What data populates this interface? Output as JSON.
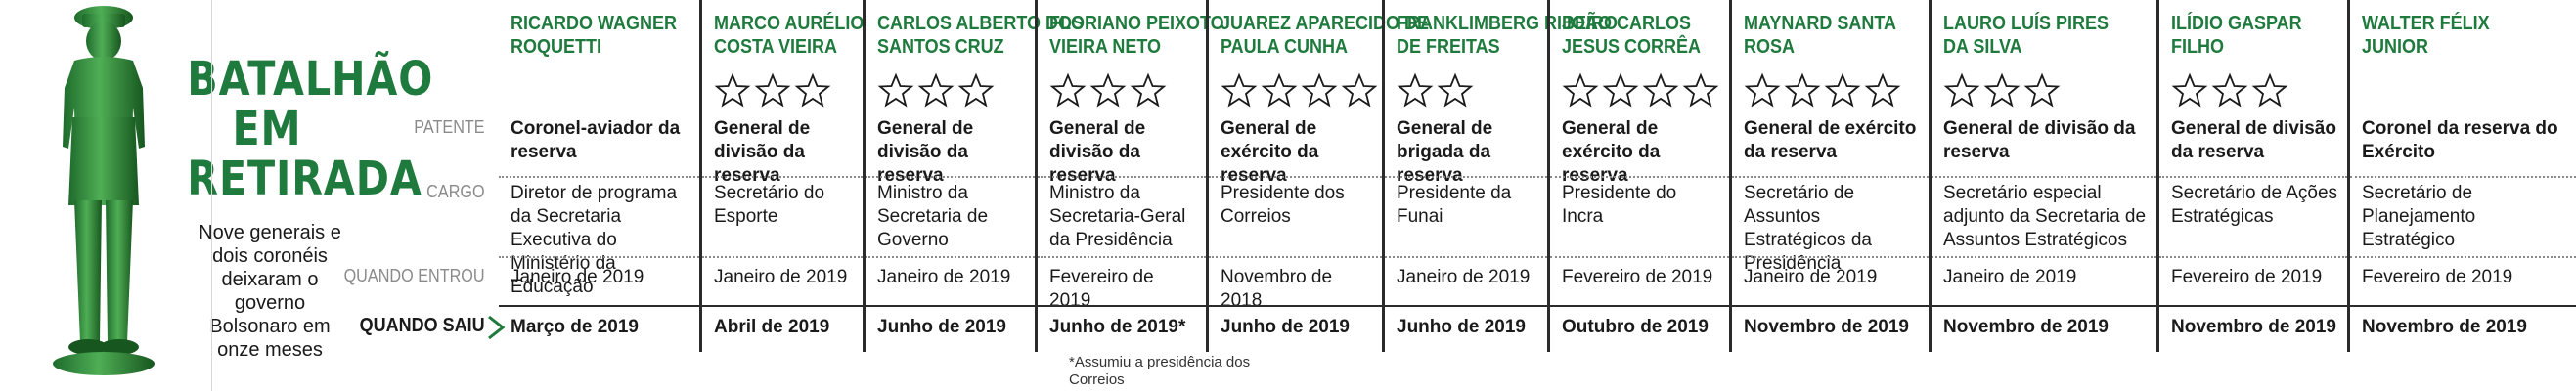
{
  "title": "BATALHÃO EM RETIRADA",
  "subtitle": "Nove generais e dois coronéis deixaram o governo Bolsonaro em onze meses",
  "row_labels": {
    "patente": "PATENTE",
    "cargo": "CARGO",
    "quando_entrou": "QUANDO ENTROU",
    "quando_saiu": "QUANDO SAIU"
  },
  "footnote": "*Assumiu a presidência dos Correios",
  "accent_color": "#1f7a3d",
  "people": [
    {
      "name": "RICARDO WAGNER ROQUETTI",
      "stars": 0,
      "patente": "Coronel-aviador da reserva",
      "cargo": "Diretor de programa da Secretaria Executiva do Ministério da Educação",
      "entrou": "Janeiro de 2019",
      "saiu": "Março de 2019"
    },
    {
      "name": "MARCO AURÉLIO COSTA VIEIRA",
      "stars": 3,
      "patente": "General de divisão da reserva",
      "cargo": "Secretário do Esporte",
      "entrou": "Janeiro de 2019",
      "saiu": "Abril de 2019"
    },
    {
      "name": "CARLOS ALBERTO DOS SANTOS CRUZ",
      "stars": 3,
      "patente": "General de divisão da reserva",
      "cargo": "Ministro da Secretaria de Governo",
      "entrou": "Janeiro de 2019",
      "saiu": "Junho de 2019"
    },
    {
      "name": "FLORIANO PEIXOTO VIEIRA NETO",
      "stars": 3,
      "patente": "General de divisão da reserva",
      "cargo": "Ministro da Secretaria-Geral da Presidência",
      "entrou": "Fevereiro de 2019",
      "saiu": "Junho de 2019*"
    },
    {
      "name": "JUAREZ APARECIDO DE PAULA CUNHA",
      "stars": 4,
      "patente": "General de exército da reserva",
      "cargo": "Presidente dos Correios",
      "entrou": "Novembro de 2018",
      "saiu": "Junho de 2019"
    },
    {
      "name": "FRANKLIMBERG RIBEIRO DE FREITAS",
      "stars": 2,
      "patente": "General de brigada da reserva",
      "cargo": "Presidente da Funai",
      "entrou": "Janeiro de 2019",
      "saiu": "Junho de 2019"
    },
    {
      "name": "JOÃO CARLOS JESUS CORRÊA",
      "stars": 4,
      "patente": "General de exército da reserva",
      "cargo": "Presidente do Incra",
      "entrou": "Fevereiro de 2019",
      "saiu": "Outubro de 2019"
    },
    {
      "name": "MAYNARD SANTA ROSA",
      "stars": 4,
      "patente": "General de exército da reserva",
      "cargo": "Secretário de Assuntos Estratégicos da Presidência",
      "entrou": "Janeiro de 2019",
      "saiu": "Novembro de 2019"
    },
    {
      "name": "LAURO LUÍS PIRES DA SILVA",
      "stars": 3,
      "patente": "General de divisão da reserva",
      "cargo": "Secretário especial adjunto da Secretaria de Assuntos Estratégicos",
      "entrou": "Janeiro de 2019",
      "saiu": "Novembro de 2019"
    },
    {
      "name": "ILÍDIO GASPAR FILHO",
      "stars": 3,
      "patente": "General de divisão da reserva",
      "cargo": "Secretário de Ações Estratégicas",
      "entrou": "Fevereiro de 2019",
      "saiu": "Novembro de 2019"
    },
    {
      "name": "WALTER FÉLIX JUNIOR",
      "stars": 0,
      "patente": "Coronel da reserva do Exército",
      "cargo": "Secretário de Planejamento Estratégico",
      "entrou": "Fevereiro de 2019",
      "saiu": "Novembro de 2019"
    }
  ]
}
